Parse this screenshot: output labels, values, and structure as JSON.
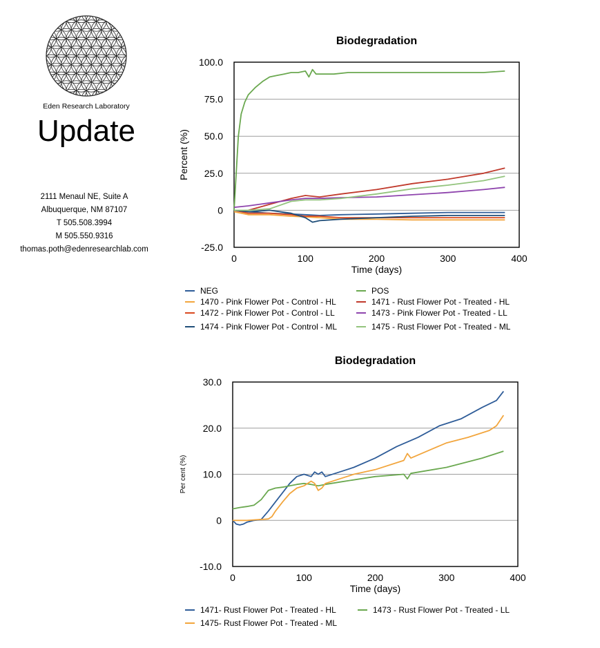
{
  "sidebar": {
    "lab_name": "Eden Research Laboratory",
    "title": "Update",
    "address_line1": "2111 Menaul NE, Suite A",
    "address_line2": "Albuquerque, NM 87107",
    "phone_t": "T 505.508.3994",
    "phone_m": "M 505.550.9316",
    "email": "thomas.poth@edenresearchlab.com"
  },
  "colors": {
    "blue": "#2e5c98",
    "green": "#6aa84f",
    "orange": "#f2a53c",
    "red": "#c0392b",
    "purple": "#8e44ad",
    "light_green": "#93c47d",
    "gridline": "#9e9e9e"
  },
  "chart_data": [
    {
      "type": "line",
      "title": "Biodegradation",
      "xlabel": "Time (days)",
      "ylabel": "Percent (%)",
      "xlim": [
        0,
        400
      ],
      "ylim": [
        -25,
        100
      ],
      "x_ticks": [
        "0",
        "100",
        "200",
        "300",
        "400"
      ],
      "y_ticks": [
        "-25.0",
        "0",
        "25.0",
        "50.0",
        "75.0",
        "100.0"
      ],
      "grid": "horizontal",
      "legend": "bottom",
      "series": [
        {
          "name": "NEG",
          "color": "#2e5c98",
          "x": [
            0,
            20,
            50,
            80,
            100,
            120,
            150,
            200,
            250,
            300,
            350,
            380
          ],
          "y": [
            0,
            -1,
            -2,
            -2.5,
            -3,
            -3.5,
            -3,
            -2.5,
            -2,
            -1.5,
            -1.5,
            -1.5
          ]
        },
        {
          "name": "POS",
          "color": "#6aa84f",
          "x": [
            0,
            3,
            6,
            10,
            15,
            20,
            30,
            40,
            50,
            60,
            70,
            80,
            90,
            100,
            105,
            110,
            115,
            120,
            140,
            160,
            200,
            250,
            300,
            350,
            380
          ],
          "y": [
            0,
            25,
            50,
            65,
            73,
            78,
            83,
            87,
            90,
            91,
            92,
            93,
            93,
            94,
            90,
            95,
            92,
            92,
            92,
            93,
            93,
            93,
            93,
            93,
            94
          ]
        },
        {
          "name": "1470 - Pink Flower Pot - Control - HL",
          "color": "#f2a53c",
          "x": [
            0,
            20,
            50,
            80,
            100,
            120,
            150,
            200,
            250,
            300,
            350,
            380
          ],
          "y": [
            -1,
            -3,
            -3,
            -4,
            -4.5,
            -5,
            -6,
            -6,
            -6.5,
            -6.5,
            -6.5,
            -6.5
          ]
        },
        {
          "name": "1471 - Rust Flower Pot - Treated - HL",
          "color": "#c0392b",
          "x": [
            0,
            20,
            50,
            80,
            100,
            120,
            150,
            200,
            250,
            300,
            350,
            380
          ],
          "y": [
            0,
            0,
            4,
            8,
            10,
            9,
            11,
            14,
            18,
            21,
            25,
            28.5
          ]
        },
        {
          "name": "1472 - Pink Flower Pot - Control - LL",
          "color": "#d9481e",
          "x": [
            0,
            20,
            50,
            80,
            100,
            120,
            150,
            200,
            250,
            300,
            350,
            380
          ],
          "y": [
            0,
            -2,
            -2,
            -3,
            -4,
            -4,
            -5,
            -5,
            -5,
            -5,
            -5,
            -5
          ]
        },
        {
          "name": "1473 - Pink Flower Pot - Treated - LL",
          "color": "#8e44ad",
          "x": [
            0,
            20,
            50,
            80,
            100,
            120,
            150,
            200,
            250,
            300,
            350,
            380
          ],
          "y": [
            2,
            3,
            5,
            7,
            8,
            8,
            8.5,
            9,
            10.5,
            12,
            14,
            15.5
          ]
        },
        {
          "name": "1474 - Pink Flower Pot - Control - ML",
          "color": "#1f4e79",
          "x": [
            0,
            20,
            50,
            80,
            100,
            110,
            120,
            150,
            200,
            250,
            300,
            350,
            380
          ],
          "y": [
            0,
            -1,
            0,
            -2,
            -5,
            -8,
            -7,
            -6,
            -5,
            -4,
            -3.5,
            -3.5,
            -3.5
          ]
        },
        {
          "name": "1475 - Rust Flower Pot - Treated - ML",
          "color": "#93c47d",
          "x": [
            0,
            20,
            50,
            80,
            100,
            120,
            150,
            200,
            250,
            300,
            350,
            380
          ],
          "y": [
            0,
            0,
            1,
            6,
            7,
            7,
            8,
            11,
            14.5,
            17,
            20,
            23
          ]
        }
      ]
    },
    {
      "type": "line",
      "title": "Biodegradation",
      "xlabel": "Time (days)",
      "ylabel": "Per cent (%)",
      "xlim": [
        0,
        400
      ],
      "ylim": [
        -10,
        30
      ],
      "x_ticks": [
        "0",
        "100",
        "200",
        "300",
        "400"
      ],
      "y_ticks": [
        "-10.0",
        "0",
        "10.0",
        "20.0",
        "30.0"
      ],
      "grid": "horizontal",
      "legend": "bottom",
      "series": [
        {
          "name": "1471- Rust Flower Pot - Treated - HL",
          "color": "#2e5c98",
          "x": [
            0,
            5,
            10,
            15,
            20,
            30,
            40,
            50,
            60,
            70,
            80,
            90,
            100,
            110,
            115,
            120,
            125,
            130,
            150,
            170,
            200,
            230,
            260,
            290,
            320,
            350,
            370,
            380
          ],
          "y": [
            0,
            -0.8,
            -1,
            -0.8,
            -0.4,
            0,
            0.2,
            2,
            4,
            6,
            8,
            9.5,
            10,
            9.5,
            10.5,
            10,
            10.5,
            9.5,
            10.5,
            11.5,
            13.5,
            16,
            18,
            20.5,
            22,
            24.5,
            26,
            28
          ]
        },
        {
          "name": "1473 - Rust Flower Pot - Treated - LL",
          "color": "#6aa84f",
          "x": [
            0,
            10,
            20,
            30,
            40,
            50,
            60,
            70,
            80,
            90,
            100,
            110,
            120,
            130,
            150,
            200,
            240,
            245,
            250,
            300,
            350,
            380
          ],
          "y": [
            2.5,
            2.8,
            3,
            3.3,
            4.5,
            6.5,
            7,
            7.2,
            7.5,
            7.8,
            8,
            7.8,
            7.5,
            7.8,
            8.3,
            9.5,
            10,
            9,
            10.2,
            11.5,
            13.5,
            15
          ]
        },
        {
          "name": "1475- Rust Flower Pot - Treated - ML",
          "color": "#f2a53c",
          "x": [
            0,
            20,
            40,
            50,
            55,
            60,
            70,
            80,
            90,
            100,
            110,
            115,
            120,
            125,
            130,
            150,
            170,
            200,
            240,
            245,
            250,
            280,
            300,
            330,
            360,
            370,
            380
          ],
          "y": [
            0,
            0,
            0.2,
            0.3,
            0.8,
            2,
            4,
            5.8,
            7,
            7.5,
            8.5,
            8,
            6.5,
            7,
            8,
            9,
            10,
            11,
            13,
            14.5,
            13.5,
            15.5,
            16.8,
            18,
            19.5,
            20.5,
            22.8
          ]
        }
      ]
    }
  ]
}
